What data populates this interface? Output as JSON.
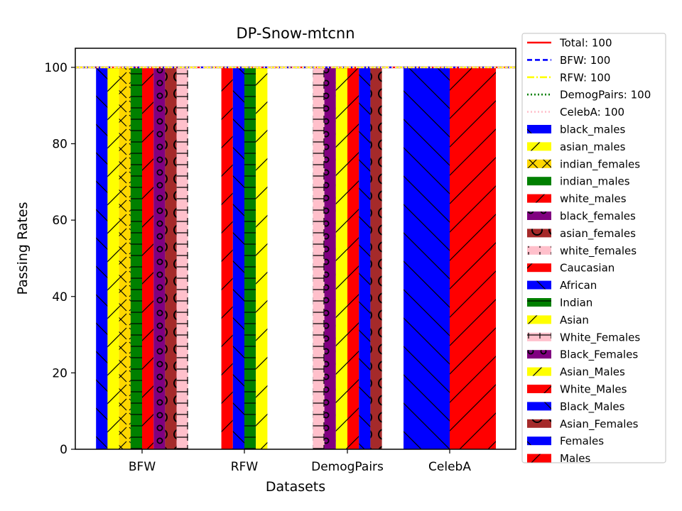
{
  "chart_data": {
    "type": "bar",
    "title": "DP-Snow-mtcnn",
    "xlabel": "Datasets",
    "ylabel": "Passing Rates",
    "ylim": [
      0,
      105
    ],
    "yticks": [
      0,
      20,
      40,
      60,
      80,
      100
    ],
    "grid": false,
    "legend_position": "right-outside",
    "reference_lines": [
      {
        "label": "Total: 100",
        "value": 100,
        "color": "#ff0000",
        "style": "solid"
      },
      {
        "label": "BFW: 100",
        "value": 100,
        "color": "#0000ff",
        "style": "dashed"
      },
      {
        "label": "RFW: 100",
        "value": 100,
        "color": "#ffff00",
        "style": "dashdot"
      },
      {
        "label": "DemogPairs: 100",
        "value": 100,
        "color": "#008000",
        "style": "dotted"
      },
      {
        "label": "CelebA: 100",
        "value": 100,
        "color": "#ffc0cb",
        "style": "dotted"
      }
    ],
    "groups": [
      {
        "category": "BFW",
        "bars": [
          {
            "name": "black_males",
            "value": 100,
            "color": "#0000ff",
            "hatch": "backslash"
          },
          {
            "name": "asian_males",
            "value": 100,
            "color": "#ffff00",
            "hatch": "slash"
          },
          {
            "name": "indian_females",
            "value": 100,
            "color": "#ffd700",
            "hatch": "x"
          },
          {
            "name": "indian_males",
            "value": 100,
            "color": "#008000",
            "hatch": "dash"
          },
          {
            "name": "white_males",
            "value": 100,
            "color": "#ff0000",
            "hatch": "slash"
          },
          {
            "name": "black_females",
            "value": 100,
            "color": "#800080",
            "hatch": "smallcircle"
          },
          {
            "name": "asian_females",
            "value": 100,
            "color": "#a52a2a",
            "hatch": "bigcircle"
          },
          {
            "name": "white_females",
            "value": 100,
            "color": "#ffc0cb",
            "hatch": "plus"
          }
        ]
      },
      {
        "category": "RFW",
        "bars": [
          {
            "name": "Caucasian",
            "value": 100,
            "color": "#ff0000",
            "hatch": "slash"
          },
          {
            "name": "African",
            "value": 100,
            "color": "#0000ff",
            "hatch": "backslash"
          },
          {
            "name": "Indian",
            "value": 100,
            "color": "#008000",
            "hatch": "dash"
          },
          {
            "name": "Asian",
            "value": 100,
            "color": "#ffff00",
            "hatch": "slash"
          }
        ]
      },
      {
        "category": "DemogPairs",
        "bars": [
          {
            "name": "White_Females",
            "value": 100,
            "color": "#ffc0cb",
            "hatch": "plus"
          },
          {
            "name": "Black_Females",
            "value": 100,
            "color": "#800080",
            "hatch": "smallcircle"
          },
          {
            "name": "Asian_Males",
            "value": 100,
            "color": "#ffff00",
            "hatch": "slash"
          },
          {
            "name": "White_Males",
            "value": 100,
            "color": "#ff0000",
            "hatch": "slash"
          },
          {
            "name": "Black_Males",
            "value": 100,
            "color": "#0000ff",
            "hatch": "backslash"
          },
          {
            "name": "Asian_Females",
            "value": 100,
            "color": "#a52a2a",
            "hatch": "bigcircle"
          }
        ]
      },
      {
        "category": "CelebA",
        "bars": [
          {
            "name": "Females",
            "value": 100,
            "color": "#0000ff",
            "hatch": "backslash"
          },
          {
            "name": "Males",
            "value": 100,
            "color": "#ff0000",
            "hatch": "slash"
          }
        ]
      }
    ]
  }
}
